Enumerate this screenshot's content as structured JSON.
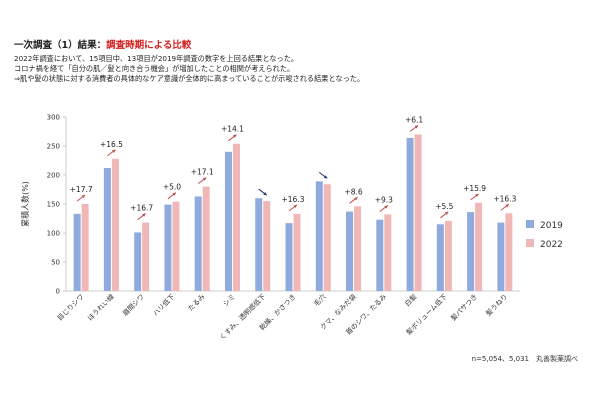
{
  "header": {
    "title_prefix": "一次調査（1）結果",
    "title_sep": "：",
    "title_highlight": "調査時期による比較",
    "lines": [
      "2022年調査において、15項目中、13項目が2019年調査の数字を上回る結果となった。",
      "コロナ禍を経て「自分の肌／髪と向き合う機会」が増加したことの相関が考えられた。",
      "⇒肌や髪の状態に対する消費者の具体的なケア意識が全体的に高まっていることが示唆される結果となった。"
    ]
  },
  "footnote": "n=5,054、5,031　丸善製薬調べ",
  "colors": {
    "s2019": "#8faadc",
    "s2022": "#f0b7b7",
    "arrow_up": "#c0504d",
    "arrow_down": "#1f3864"
  },
  "chart_data": {
    "type": "bar",
    "ylabel": "累積人数(%)",
    "ylim": [
      0,
      300
    ],
    "yticks": [
      0,
      50,
      100,
      150,
      200,
      250,
      300
    ],
    "categories": [
      "目じりシワ",
      "ほうれい線",
      "眉間シワ",
      "ハリ低下",
      "たるみ",
      "シミ",
      "くすみ、透明感低下",
      "乾燥、かさつき",
      "毛穴",
      "クマ、なみだ袋",
      "首のシワ、たるみ",
      "白髪",
      "髪ボリューム低下",
      "髪パサつき",
      "髪うねり"
    ],
    "series": [
      {
        "name": "2019",
        "values": [
          133,
          212,
          101,
          149,
          163,
          240,
          160,
          117,
          189,
          137,
          123,
          264,
          115,
          136,
          118
        ]
      },
      {
        "name": "2022",
        "values": [
          150,
          228,
          118,
          154,
          180,
          254,
          155,
          133,
          184,
          146,
          132,
          270,
          121,
          152,
          134
        ]
      }
    ],
    "annotations": [
      "+17.7",
      "+16.5",
      "+16.7",
      "+5.0",
      "+17.1",
      "+14.1",
      "",
      "+16.3",
      "",
      "+8.6",
      "+9.3",
      "+6.1",
      "+5.5",
      "+15.9",
      "+16.3"
    ],
    "direction": [
      "up",
      "up",
      "up",
      "up",
      "up",
      "up",
      "down",
      "up",
      "down",
      "up",
      "up",
      "up",
      "up",
      "up",
      "up"
    ],
    "legend_position": "right"
  }
}
